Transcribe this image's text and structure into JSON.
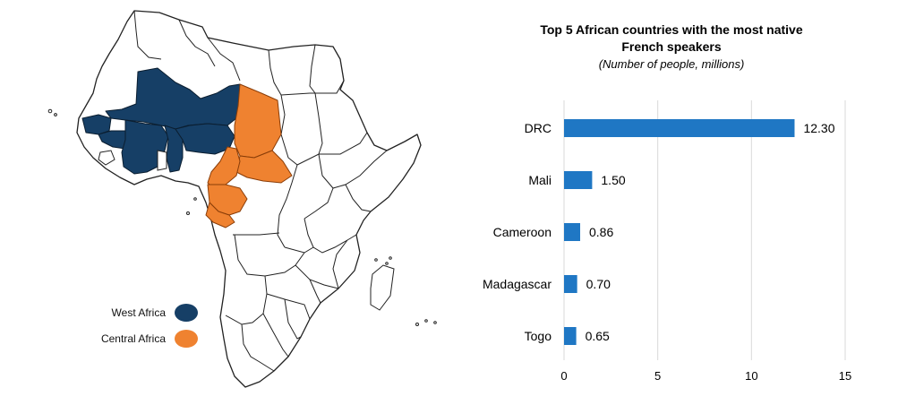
{
  "legend": {
    "items": [
      {
        "label": "West Africa",
        "color": "#163f66"
      },
      {
        "label": "Central Africa",
        "color": "#ef8230"
      }
    ]
  },
  "colors": {
    "west": "#163f66",
    "central": "#ef8230",
    "bar": "#1f77c4",
    "outline": "#222222"
  },
  "chart_data": {
    "type": "bar",
    "orientation": "horizontal",
    "title": "Top 5 African countries with the most native French speakers",
    "title_lines": [
      "Top 5 African countries with the most native",
      "French speakers"
    ],
    "subtitle": "(Number of people, millions)",
    "categories": [
      "DRC",
      "Mali",
      "Cameroon",
      "Madagascar",
      "Togo"
    ],
    "values": [
      12.3,
      1.5,
      0.86,
      0.7,
      0.65
    ],
    "value_labels": [
      "12.30",
      "1.50",
      "0.86",
      "0.70",
      "0.65"
    ],
    "xlim": [
      0,
      15
    ],
    "xticks": [
      0,
      5,
      10,
      15
    ],
    "grid": true,
    "xlabel": "",
    "ylabel": ""
  }
}
